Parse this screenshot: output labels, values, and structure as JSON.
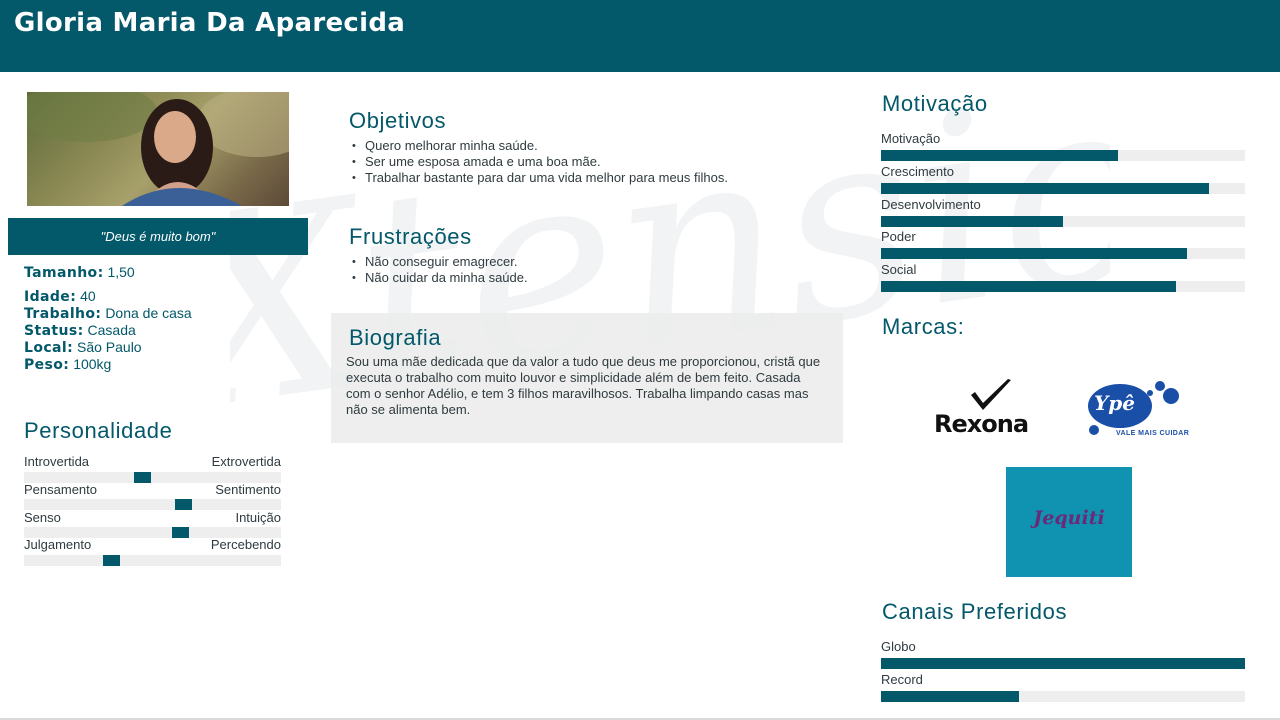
{
  "header": {
    "name": "Gloria Maria Da Aparecida"
  },
  "profile": {
    "quote": "\"Deus é muito bom\"",
    "fields": [
      {
        "label": "Tamanho:",
        "value": "1,50"
      },
      {
        "label": "Idade:",
        "value": "40"
      },
      {
        "label": "Trabalho:",
        "value": "Dona de casa"
      },
      {
        "label": "Status:",
        "value": "Casada"
      },
      {
        "label": "Local:",
        "value": "São Paulo"
      },
      {
        "label": "Peso:",
        "value": "100kg"
      }
    ]
  },
  "personalidade": {
    "title": "Personalidade",
    "traits": [
      {
        "left": "Introvertida",
        "right": "Extrovertida",
        "level": 0.46
      },
      {
        "left": "Pensamento",
        "right": "Sentimento",
        "level": 0.62
      },
      {
        "left": "Senso",
        "right": "Intuição",
        "level": 0.61
      },
      {
        "left": "Julgamento",
        "right": "Percebendo",
        "level": 0.34
      }
    ]
  },
  "objetivos": {
    "title": "Objetivos",
    "items": [
      "Quero melhorar minha saúde.",
      "Ser ume esposa amada e uma boa mãe.",
      "Trabalhar bastante para dar uma vida melhor para meus filhos."
    ]
  },
  "frustracoes": {
    "title": "Frustrações",
    "items": [
      "Não conseguir emagrecer.",
      "Não cuidar da minha saúde."
    ]
  },
  "biografia": {
    "title": "Biografia",
    "text": "Sou uma mãe dedicada que da valor a tudo que deus me proporcionou, cristã que executa o trabalho com muito louvor e simplicidade além de bem feito. Casada com o senhor Adélio, e tem 3 filhos maravilhosos. Trabalha limpando casas mas não se alimenta bem."
  },
  "motivacao": {
    "title": "Motivação",
    "bars": [
      {
        "label": "Motivação",
        "value": 0.65
      },
      {
        "label": "Crescimento",
        "value": 0.9
      },
      {
        "label": "Desenvolvimento",
        "value": 0.5
      },
      {
        "label": "Poder",
        "value": 0.84
      },
      {
        "label": "Social",
        "value": 0.81
      }
    ]
  },
  "marcas": {
    "title": "Marcas:",
    "logos": {
      "rexona": "Rexona",
      "ype": "Ypê",
      "ype_tag": "VALE MAIS CUIDAR",
      "jequiti": "Jequiti"
    }
  },
  "canais": {
    "title": "Canais Preferidos",
    "bars": [
      {
        "label": "Globo",
        "value": 1.0
      },
      {
        "label": "Record",
        "value": 0.38
      }
    ]
  },
  "watermark": "Xtensio",
  "colors": {
    "primary": "#03586a",
    "track": "#eeeeee"
  }
}
